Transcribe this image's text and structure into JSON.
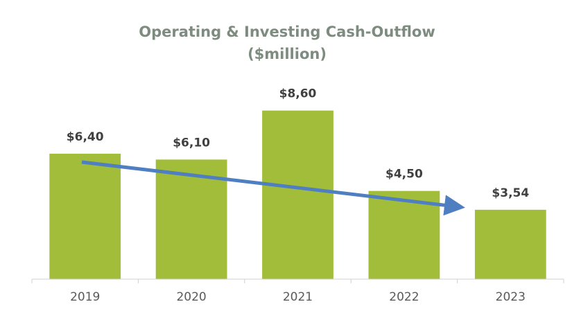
{
  "chart_data": {
    "type": "bar",
    "title": [
      "Operating & Investing Cash-Outflow",
      "($million)"
    ],
    "categories": [
      "2019",
      "2020",
      "2021",
      "2022",
      "2023"
    ],
    "values": [
      6.4,
      6.1,
      8.6,
      4.5,
      3.54
    ],
    "value_labels": [
      "$6,40",
      "$6,10",
      "$8,60",
      "$4,50",
      "$3,54"
    ],
    "color": "#a2bd3a",
    "ylim": [
      0,
      10
    ]
  }
}
